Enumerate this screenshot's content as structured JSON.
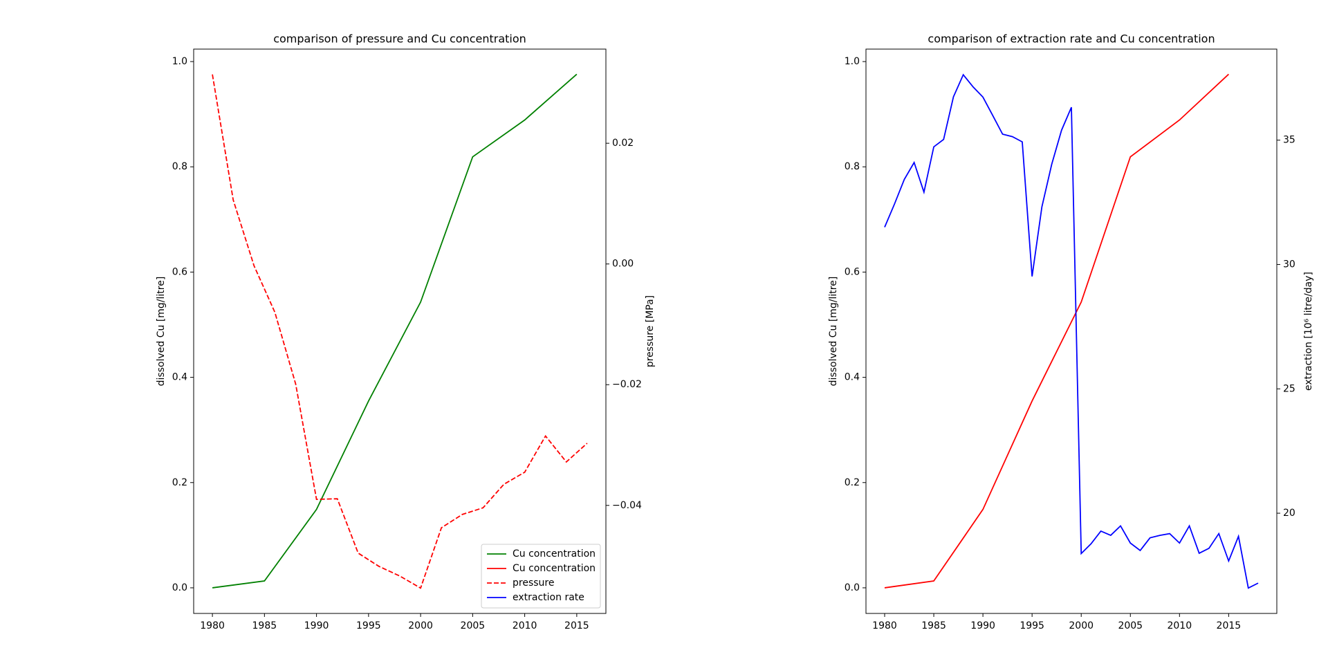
{
  "chart_data": [
    {
      "type": "line",
      "title": "comparison of pressure and Cu concentration",
      "ylabel": "dissolved Cu [mg/litre]",
      "y2label": "pressure [MPa]",
      "xlim": [
        1978.2,
        2017.8
      ],
      "xticks": [
        1980,
        1985,
        1990,
        1995,
        2000,
        2005,
        2010,
        2015
      ],
      "ylim": [
        -0.0487,
        1.0237
      ],
      "yticks": [
        {
          "value": 0,
          "label": "0.0"
        },
        0.2,
        0.4,
        0.6,
        0.8,
        {
          "value": 1,
          "label": "1.0"
        }
      ],
      "y2lim": [
        -0.0579,
        0.0356
      ],
      "y2ticks": [
        {
          "value": -0.04,
          "label": "−0.04"
        },
        {
          "value": -0.02,
          "label": "−0.02"
        },
        {
          "value": 0,
          "label": "0.00"
        },
        0.02
      ],
      "legend": "lower right",
      "series": [
        {
          "name": "Cu concentration",
          "color": "#008000",
          "dash": "solid",
          "x": [
            1980,
            1985,
            1990,
            1995,
            2000,
            2005,
            2010,
            2015
          ],
          "values": [
            0.0,
            0.013,
            0.149,
            0.355,
            0.543,
            0.819,
            0.889,
            0.976
          ]
        },
        {
          "name": "pressure",
          "color": "#ff0000",
          "dash": "dashed",
          "axis": "y2",
          "x": [
            1980,
            1982,
            1984,
            1986,
            1988,
            1990,
            1992,
            1994,
            1996,
            1998,
            2000,
            2002,
            2004,
            2006,
            2008,
            2010,
            2012,
            2014,
            2016
          ],
          "values": [
            0.0314,
            0.0106,
            -0.0003,
            -0.008,
            -0.0199,
            -0.039,
            -0.0389,
            -0.0479,
            -0.0501,
            -0.0517,
            -0.0537,
            -0.0437,
            -0.0415,
            -0.0404,
            -0.0365,
            -0.0345,
            -0.0285,
            -0.0328,
            -0.0297
          ]
        }
      ]
    },
    {
      "type": "line",
      "title": "comparison of extraction rate and Cu concentration",
      "ylabel": "dissolved Cu [mg/litre]",
      "y2label": "extraction [10⁶ litre/day]",
      "xlim": [
        1978.1,
        2019.9
      ],
      "xticks": [
        1980,
        1985,
        1990,
        1995,
        2000,
        2005,
        2010,
        2015
      ],
      "ylim": [
        -0.0487,
        1.0237
      ],
      "yticks": [
        {
          "value": 0,
          "label": "0.0"
        },
        0.2,
        0.4,
        0.6,
        0.8,
        {
          "value": 1,
          "label": "1.0"
        }
      ],
      "y2lim": [
        15.97,
        38.66
      ],
      "y2ticks": [
        20,
        25,
        30,
        35
      ],
      "series": [
        {
          "name": "Cu concentration",
          "color": "#ff0000",
          "dash": "solid",
          "x": [
            1980,
            1985,
            1990,
            1995,
            2000,
            2005,
            2010,
            2015
          ],
          "values": [
            0.0,
            0.013,
            0.149,
            0.355,
            0.543,
            0.819,
            0.889,
            0.976
          ]
        },
        {
          "name": "extraction rate",
          "color": "#0000ff",
          "dash": "solid",
          "axis": "y2",
          "x": [
            1980,
            1981,
            1982,
            1983,
            1984,
            1985,
            1986,
            1987,
            1988,
            1989,
            1990,
            1991,
            1992,
            1993,
            1994,
            1995,
            1996,
            1997,
            1998,
            1999,
            2000,
            2001,
            2002,
            2003,
            2004,
            2005,
            2006,
            2007,
            2008,
            2009,
            2010,
            2011,
            2012,
            2013,
            2014,
            2015,
            2016,
            2017,
            2018
          ],
          "values": [
            31.5,
            32.43,
            33.42,
            34.1,
            32.91,
            34.73,
            35.03,
            36.74,
            37.63,
            37.14,
            36.73,
            35.99,
            35.24,
            35.14,
            34.93,
            29.52,
            32.32,
            34.03,
            35.4,
            36.32,
            18.38,
            18.77,
            19.28,
            19.11,
            19.49,
            18.8,
            18.5,
            19.01,
            19.11,
            19.18,
            18.8,
            19.49,
            18.39,
            18.59,
            19.18,
            18.08,
            19.07,
            16.99,
            17.19
          ]
        }
      ]
    }
  ]
}
